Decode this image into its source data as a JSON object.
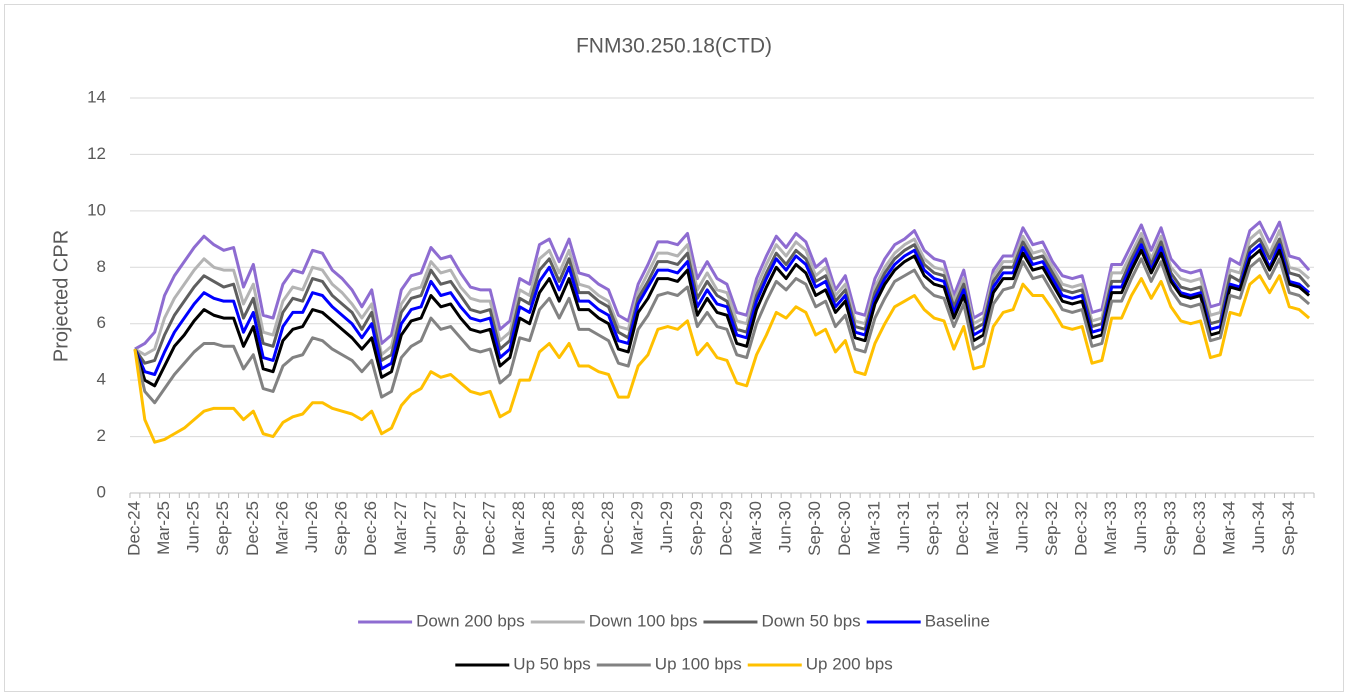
{
  "chart_data": {
    "type": "line",
    "title": "FNM30.250.18(CTD)",
    "y_label": "Projected CPR",
    "categories": [
      "Dec-24",
      null,
      null,
      "Mar-25",
      null,
      null,
      "Jun-25",
      null,
      null,
      "Sep-25",
      null,
      null,
      "Dec-25",
      null,
      null,
      "Mar-26",
      null,
      null,
      "Jun-26",
      null,
      null,
      "Sep-26",
      null,
      null,
      "Dec-26",
      null,
      null,
      "Mar-27",
      null,
      null,
      "Jun-27",
      null,
      null,
      "Sep-27",
      null,
      null,
      "Dec-27",
      null,
      null,
      "Mar-28",
      null,
      null,
      "Jun-28",
      null,
      null,
      "Sep-28",
      null,
      null,
      "Dec-28",
      null,
      null,
      "Mar-29",
      null,
      null,
      "Jun-29",
      null,
      null,
      "Sep-29",
      null,
      null,
      "Dec-29",
      null,
      null,
      "Mar-30",
      null,
      null,
      "Jun-30",
      null,
      null,
      "Sep-30",
      null,
      null,
      "Dec-30",
      null,
      null,
      "Mar-31",
      null,
      null,
      "Jun-31",
      null,
      null,
      "Sep-31",
      null,
      null,
      "Dec-31",
      null,
      null,
      "Mar-32",
      null,
      null,
      "Jun-32",
      null,
      null,
      "Sep-32",
      null,
      null,
      "Dec-32",
      null,
      null,
      "Mar-33",
      null,
      null,
      "Jun-33",
      null,
      null,
      "Sep-33",
      null,
      null,
      "Dec-33",
      null,
      null,
      "Mar-34",
      null,
      null,
      "Jun-34",
      null,
      null,
      "Sep-34",
      null,
      null
    ],
    "ylim": [
      0,
      14
    ],
    "yticks": [
      0,
      2,
      4,
      6,
      8,
      10,
      12,
      14
    ],
    "grid": true,
    "legend": "bottom",
    "series": [
      {
        "name": "Down 200 bps",
        "color": "#8e6cd1",
        "values": [
          5.1,
          5.3,
          5.7,
          7.0,
          7.7,
          8.2,
          8.7,
          9.1,
          8.8,
          8.6,
          8.7,
          7.3,
          8.1,
          6.3,
          6.2,
          7.4,
          7.9,
          7.8,
          8.6,
          8.5,
          7.9,
          7.6,
          7.2,
          6.6,
          7.2,
          5.3,
          5.6,
          7.2,
          7.7,
          7.8,
          8.7,
          8.3,
          8.4,
          7.8,
          7.3,
          7.2,
          7.2,
          5.8,
          6.1,
          7.6,
          7.4,
          8.8,
          9.0,
          8.2,
          9.0,
          7.8,
          7.7,
          7.4,
          7.2,
          6.3,
          6.1,
          7.4,
          8.1,
          8.9,
          8.9,
          8.8,
          9.2,
          7.6,
          8.2,
          7.6,
          7.4,
          6.4,
          6.3,
          7.6,
          8.4,
          9.1,
          8.7,
          9.2,
          8.9,
          8.0,
          8.3,
          7.2,
          7.7,
          6.4,
          6.3,
          7.6,
          8.3,
          8.8,
          9.0,
          9.3,
          8.6,
          8.3,
          8.2,
          7.0,
          7.9,
          6.2,
          6.4,
          7.9,
          8.4,
          8.4,
          9.4,
          8.8,
          8.9,
          8.2,
          7.7,
          7.6,
          7.7,
          6.4,
          6.5,
          8.1,
          8.1,
          8.8,
          9.5,
          8.6,
          9.4,
          8.3,
          7.9,
          7.8,
          7.9,
          6.6,
          6.7,
          8.3,
          8.1,
          9.3,
          9.6,
          8.9,
          9.6,
          8.4,
          8.3,
          7.9
        ]
      },
      {
        "name": "Down 100 bps",
        "color": "#b4b4b4",
        "values": [
          5.1,
          4.9,
          5.1,
          6.2,
          6.9,
          7.4,
          7.9,
          8.3,
          8.0,
          7.9,
          7.9,
          6.7,
          7.4,
          5.7,
          5.6,
          6.8,
          7.3,
          7.2,
          8.0,
          7.9,
          7.4,
          7.1,
          6.7,
          6.2,
          6.7,
          4.9,
          5.2,
          6.7,
          7.2,
          7.3,
          8.2,
          7.8,
          7.9,
          7.3,
          6.9,
          6.8,
          6.8,
          5.4,
          5.7,
          7.2,
          7.0,
          8.3,
          8.6,
          7.8,
          8.6,
          7.4,
          7.3,
          7.0,
          6.8,
          5.9,
          5.8,
          7.1,
          7.8,
          8.5,
          8.5,
          8.4,
          8.8,
          7.2,
          7.8,
          7.2,
          7.1,
          6.1,
          6.0,
          7.3,
          8.1,
          8.8,
          8.4,
          8.9,
          8.6,
          7.7,
          8.0,
          7.0,
          7.4,
          6.1,
          6.0,
          7.3,
          8.0,
          8.5,
          8.8,
          9.0,
          8.3,
          8.0,
          7.9,
          6.8,
          7.6,
          6.0,
          6.2,
          7.7,
          8.2,
          8.2,
          9.1,
          8.5,
          8.6,
          8.0,
          7.4,
          7.3,
          7.4,
          6.1,
          6.2,
          7.8,
          7.8,
          8.5,
          9.2,
          8.3,
          9.1,
          8.0,
          7.6,
          7.5,
          7.6,
          6.3,
          6.4,
          7.9,
          7.8,
          9.0,
          9.3,
          8.5,
          9.3,
          8.0,
          7.9,
          7.6
        ]
      },
      {
        "name": "Down 50 bps",
        "color": "#5f5f5f",
        "values": [
          5.1,
          4.6,
          4.7,
          5.6,
          6.3,
          6.8,
          7.3,
          7.7,
          7.5,
          7.3,
          7.4,
          6.2,
          6.9,
          5.3,
          5.2,
          6.4,
          6.9,
          6.8,
          7.6,
          7.5,
          7.0,
          6.7,
          6.4,
          5.8,
          6.4,
          4.7,
          4.9,
          6.4,
          6.9,
          7.0,
          7.9,
          7.4,
          7.5,
          7.0,
          6.5,
          6.4,
          6.5,
          5.1,
          5.4,
          6.9,
          6.7,
          7.9,
          8.3,
          7.5,
          8.3,
          7.1,
          7.1,
          6.8,
          6.6,
          5.7,
          5.5,
          6.9,
          7.5,
          8.2,
          8.2,
          8.1,
          8.5,
          6.9,
          7.5,
          7.0,
          6.8,
          5.8,
          5.7,
          7.0,
          7.8,
          8.5,
          8.1,
          8.6,
          8.3,
          7.5,
          7.7,
          6.8,
          7.2,
          5.9,
          5.8,
          7.1,
          7.8,
          8.3,
          8.6,
          8.8,
          8.1,
          7.8,
          7.7,
          6.6,
          7.4,
          5.8,
          6.0,
          7.5,
          8.0,
          8.0,
          8.9,
          8.3,
          8.4,
          7.8,
          7.2,
          7.1,
          7.2,
          5.9,
          6.0,
          7.5,
          7.5,
          8.3,
          9.0,
          8.1,
          8.9,
          7.8,
          7.3,
          7.2,
          7.3,
          6.0,
          6.1,
          7.7,
          7.5,
          8.7,
          9.0,
          8.3,
          9.0,
          7.8,
          7.7,
          7.3
        ]
      },
      {
        "name": "Baseline",
        "color": "#0000ff",
        "values": [
          5.1,
          4.3,
          4.2,
          5.0,
          5.7,
          6.2,
          6.7,
          7.1,
          6.9,
          6.8,
          6.8,
          5.7,
          6.4,
          4.8,
          4.7,
          5.9,
          6.4,
          6.4,
          7.1,
          7.0,
          6.6,
          6.3,
          6.0,
          5.5,
          6.0,
          4.4,
          4.6,
          6.0,
          6.5,
          6.6,
          7.5,
          7.0,
          7.1,
          6.6,
          6.2,
          6.1,
          6.2,
          4.8,
          5.1,
          6.6,
          6.4,
          7.5,
          8.0,
          7.2,
          8.0,
          6.8,
          6.8,
          6.5,
          6.3,
          5.4,
          5.3,
          6.7,
          7.3,
          7.9,
          7.9,
          7.8,
          8.2,
          6.6,
          7.2,
          6.7,
          6.6,
          5.6,
          5.5,
          6.8,
          7.6,
          8.3,
          7.9,
          8.4,
          8.1,
          7.3,
          7.5,
          6.6,
          7.0,
          5.7,
          5.6,
          6.9,
          7.6,
          8.1,
          8.4,
          8.6,
          7.9,
          7.6,
          7.5,
          6.4,
          7.2,
          5.6,
          5.8,
          7.3,
          7.8,
          7.8,
          8.7,
          8.1,
          8.2,
          7.6,
          7.0,
          6.9,
          7.0,
          5.7,
          5.8,
          7.3,
          7.3,
          8.1,
          8.8,
          7.9,
          8.7,
          7.6,
          7.1,
          7.0,
          7.1,
          5.8,
          5.9,
          7.4,
          7.3,
          8.5,
          8.8,
          8.0,
          8.8,
          7.5,
          7.4,
          7.1
        ]
      },
      {
        "name": "Up 50 bps",
        "color": "#000000",
        "values": [
          5.1,
          4.0,
          3.8,
          4.5,
          5.2,
          5.6,
          6.1,
          6.5,
          6.3,
          6.2,
          6.2,
          5.2,
          5.9,
          4.4,
          4.3,
          5.4,
          5.8,
          5.9,
          6.5,
          6.4,
          6.1,
          5.8,
          5.5,
          5.1,
          5.5,
          4.1,
          4.3,
          5.6,
          6.1,
          6.2,
          7.0,
          6.6,
          6.7,
          6.2,
          5.8,
          5.7,
          5.8,
          4.5,
          4.8,
          6.2,
          6.0,
          7.1,
          7.6,
          6.8,
          7.6,
          6.5,
          6.5,
          6.2,
          6.0,
          5.1,
          5.0,
          6.4,
          6.9,
          7.6,
          7.6,
          7.5,
          7.9,
          6.3,
          6.9,
          6.4,
          6.3,
          5.3,
          5.2,
          6.5,
          7.3,
          8.0,
          7.6,
          8.1,
          7.8,
          7.0,
          7.2,
          6.4,
          6.8,
          5.5,
          5.4,
          6.7,
          7.4,
          7.9,
          8.2,
          8.4,
          7.7,
          7.4,
          7.3,
          6.2,
          7.0,
          5.4,
          5.6,
          7.1,
          7.6,
          7.6,
          8.5,
          7.9,
          8.0,
          7.4,
          6.8,
          6.7,
          6.8,
          5.5,
          5.6,
          7.1,
          7.1,
          7.9,
          8.6,
          7.8,
          8.5,
          7.5,
          7.0,
          6.9,
          7.0,
          5.6,
          5.7,
          7.3,
          7.2,
          8.3,
          8.6,
          7.9,
          8.6,
          7.4,
          7.3,
          7.0
        ]
      },
      {
        "name": "Up 100 bps",
        "color": "#828282",
        "values": [
          5.1,
          3.6,
          3.2,
          3.7,
          4.2,
          4.6,
          5.0,
          5.3,
          5.3,
          5.2,
          5.2,
          4.4,
          4.9,
          3.7,
          3.6,
          4.5,
          4.8,
          4.9,
          5.5,
          5.4,
          5.1,
          4.9,
          4.7,
          4.3,
          4.7,
          3.4,
          3.6,
          4.8,
          5.2,
          5.4,
          6.2,
          5.8,
          5.9,
          5.5,
          5.1,
          5.0,
          5.1,
          3.9,
          4.2,
          5.5,
          5.4,
          6.5,
          6.9,
          6.2,
          6.9,
          5.8,
          5.8,
          5.6,
          5.4,
          4.6,
          4.5,
          5.8,
          6.3,
          7.0,
          7.1,
          7.0,
          7.3,
          5.9,
          6.4,
          5.9,
          5.8,
          4.9,
          4.8,
          6.0,
          6.8,
          7.5,
          7.2,
          7.6,
          7.4,
          6.6,
          6.8,
          5.9,
          6.3,
          5.1,
          5.0,
          6.2,
          6.9,
          7.5,
          7.7,
          7.9,
          7.3,
          7.0,
          6.9,
          5.9,
          6.7,
          5.1,
          5.3,
          6.7,
          7.2,
          7.3,
          8.2,
          7.6,
          7.7,
          7.1,
          6.5,
          6.4,
          6.5,
          5.2,
          5.3,
          6.8,
          6.8,
          7.6,
          8.3,
          7.5,
          8.2,
          7.2,
          6.7,
          6.6,
          6.7,
          5.4,
          5.5,
          7.0,
          6.9,
          8.0,
          8.3,
          7.6,
          8.3,
          7.1,
          7.0,
          6.7
        ]
      },
      {
        "name": "Up 200 bps",
        "color": "#ffc000",
        "values": [
          5.1,
          2.6,
          1.8,
          1.9,
          2.1,
          2.3,
          2.6,
          2.9,
          3.0,
          3.0,
          3.0,
          2.6,
          2.9,
          2.1,
          2.0,
          2.5,
          2.7,
          2.8,
          3.2,
          3.2,
          3.0,
          2.9,
          2.8,
          2.6,
          2.9,
          2.1,
          2.3,
          3.1,
          3.5,
          3.7,
          4.3,
          4.1,
          4.2,
          3.9,
          3.6,
          3.5,
          3.6,
          2.7,
          2.9,
          4.0,
          4.0,
          5.0,
          5.3,
          4.8,
          5.3,
          4.5,
          4.5,
          4.3,
          4.2,
          3.4,
          3.4,
          4.5,
          4.9,
          5.8,
          5.9,
          5.8,
          6.1,
          4.9,
          5.3,
          4.8,
          4.7,
          3.9,
          3.8,
          4.9,
          5.6,
          6.4,
          6.2,
          6.6,
          6.4,
          5.6,
          5.8,
          5.0,
          5.4,
          4.3,
          4.2,
          5.3,
          6.0,
          6.6,
          6.8,
          7.0,
          6.5,
          6.2,
          6.1,
          5.1,
          5.9,
          4.4,
          4.5,
          5.9,
          6.4,
          6.5,
          7.4,
          7.0,
          7.0,
          6.5,
          5.9,
          5.8,
          5.9,
          4.6,
          4.7,
          6.2,
          6.2,
          7.0,
          7.6,
          6.9,
          7.5,
          6.6,
          6.1,
          6.0,
          6.1,
          4.8,
          4.9,
          6.4,
          6.3,
          7.4,
          7.7,
          7.1,
          7.7,
          6.6,
          6.5,
          6.2
        ]
      }
    ]
  }
}
